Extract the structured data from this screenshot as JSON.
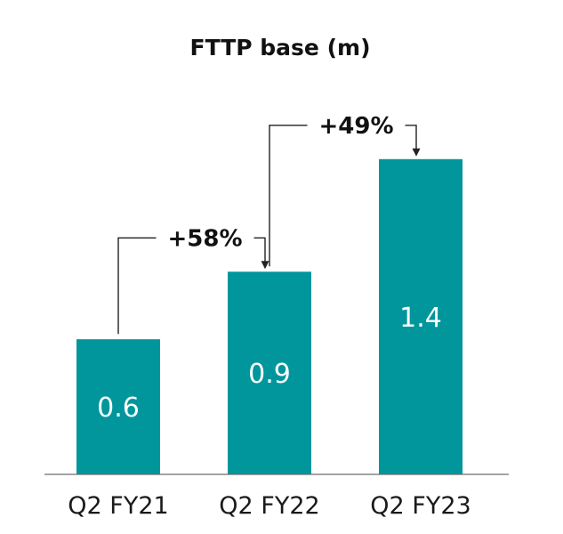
{
  "chart_data": {
    "type": "bar",
    "title": "FTTP base (m)",
    "xlabel": "",
    "ylabel": "",
    "categories": [
      "Q2 FY21",
      "Q2 FY22",
      "Q2 FY23"
    ],
    "values": [
      0.6,
      0.9,
      1.4
    ],
    "data_labels": [
      "0.6",
      "0.9",
      "1.4"
    ],
    "ylim": [
      0,
      1.7
    ],
    "grid": false,
    "legend": "none",
    "bar_color": "#00969b",
    "annotations": [
      {
        "text": "+58%",
        "from": 0,
        "to": 1
      },
      {
        "text": "+49%",
        "from": 1,
        "to": 2
      }
    ]
  }
}
